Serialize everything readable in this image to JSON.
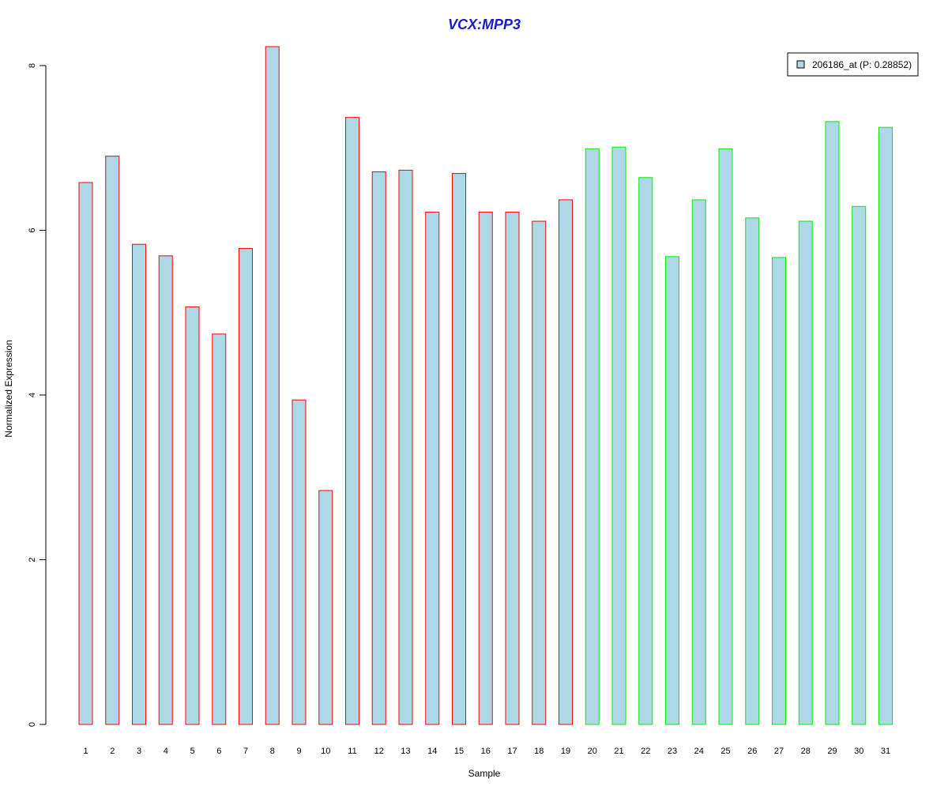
{
  "chart_data": {
    "type": "bar",
    "title": "VCX:MPP3",
    "xlabel": "Sample",
    "ylabel": "Normalized Expression",
    "ylim": [
      0,
      8.2
    ],
    "yticks": [
      0,
      2,
      4,
      6,
      8
    ],
    "categories": [
      "1",
      "2",
      "3",
      "4",
      "5",
      "6",
      "7",
      "8",
      "9",
      "10",
      "11",
      "12",
      "13",
      "14",
      "15",
      "16",
      "17",
      "18",
      "19",
      "20",
      "21",
      "22",
      "23",
      "24",
      "25",
      "26",
      "27",
      "28",
      "29",
      "30",
      "31"
    ],
    "values": [
      6.58,
      6.9,
      5.83,
      5.69,
      5.07,
      4.74,
      5.78,
      8.23,
      3.94,
      2.84,
      7.37,
      6.71,
      6.73,
      6.22,
      6.69,
      6.22,
      6.22,
      6.11,
      6.37,
      6.99,
      7.01,
      6.64,
      5.68,
      6.37,
      6.99,
      6.15,
      5.67,
      6.11,
      7.32,
      6.29,
      7.25
    ],
    "groups": [
      "red",
      "red",
      "red",
      "red",
      "red",
      "red",
      "red",
      "red",
      "red",
      "red",
      "red",
      "red",
      "red",
      "red",
      "red",
      "red",
      "red",
      "red",
      "red",
      "green",
      "green",
      "green",
      "green",
      "green",
      "green",
      "green",
      "green",
      "green",
      "green",
      "green",
      "green"
    ],
    "legend": {
      "label": "206186_at (P: 0.28852)",
      "placement": "top-right"
    },
    "grid": false
  },
  "colors": {
    "title": "#1a1acd",
    "bar_fill": "#add8e6",
    "red": "#ff0000",
    "green": "#00ee00",
    "axis": "#000000"
  }
}
